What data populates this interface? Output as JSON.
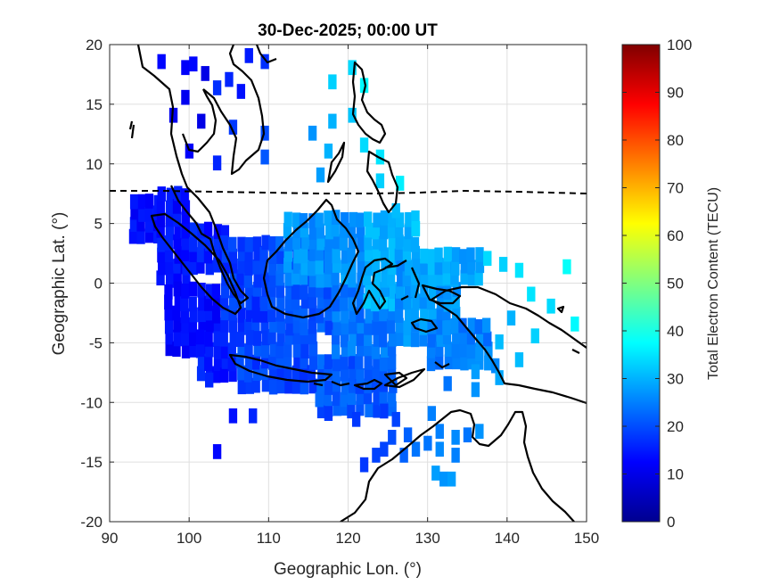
{
  "chart_data": {
    "type": "heatmap",
    "title": "30-Dec-2025; 00:00 UT",
    "xlabel": "Geographic Lon. (°)",
    "ylabel": "Geographic Lat. (°)",
    "xlim": [
      90,
      150
    ],
    "ylim": [
      -20,
      20
    ],
    "xticks": [
      90,
      100,
      110,
      120,
      130,
      140,
      150
    ],
    "yticks": [
      -20,
      -15,
      -10,
      -5,
      0,
      5,
      10,
      15,
      20
    ],
    "grid": true,
    "colorbar": {
      "label": "Total Electron Content (TECU)",
      "range": [
        0,
        100
      ],
      "ticks": [
        0,
        10,
        20,
        30,
        40,
        50,
        60,
        70,
        80,
        90,
        100
      ],
      "colormap": "jet"
    },
    "magnetic_equator_lat": 7.5,
    "cell_size_deg": [
      1.0,
      1.0
    ],
    "regions": [
      {
        "lon_min": 92.5,
        "lon_max": 96.5,
        "lat_min": 3.5,
        "lat_max": 7.5,
        "tec": 13
      },
      {
        "lon_min": 96,
        "lon_max": 100,
        "lat_min": 0,
        "lat_max": 7.5,
        "tec": 14
      },
      {
        "lon_min": 97,
        "lon_max": 104,
        "lat_min": -6,
        "lat_max": 0,
        "tec": 13
      },
      {
        "lon_min": 99,
        "lon_max": 105,
        "lat_min": 1,
        "lat_max": 5,
        "tec": 15
      },
      {
        "lon_min": 101,
        "lon_max": 106,
        "lat_min": -8,
        "lat_max": -4,
        "tec": 15
      },
      {
        "lon_min": 104,
        "lon_max": 110,
        "lat_min": -4,
        "lat_max": 4,
        "tec": 18
      },
      {
        "lon_min": 106,
        "lon_max": 116,
        "lat_min": -9,
        "lat_max": -4,
        "tec": 19
      },
      {
        "lon_min": 110,
        "lon_max": 118,
        "lat_min": -4,
        "lat_max": 4,
        "tec": 21
      },
      {
        "lon_min": 116,
        "lon_max": 126,
        "lat_min": -11,
        "lat_max": -6,
        "tec": 21
      },
      {
        "lon_min": 118,
        "lon_max": 126,
        "lat_min": -6,
        "lat_max": 0,
        "tec": 24
      },
      {
        "lon_min": 112,
        "lon_max": 122,
        "lat_min": 0,
        "lat_max": 6,
        "tec": 27
      },
      {
        "lon_min": 122,
        "lon_max": 129,
        "lat_min": -2,
        "lat_max": 6,
        "tec": 30
      },
      {
        "lon_min": 126,
        "lon_max": 134,
        "lat_min": -5,
        "lat_max": 2,
        "tec": 27
      },
      {
        "lon_min": 129,
        "lon_max": 137,
        "lat_min": 0,
        "lat_max": 3,
        "tec": 29
      },
      {
        "lon_min": 130,
        "lon_max": 138,
        "lat_min": -7,
        "lat_max": -3,
        "tec": 25
      }
    ],
    "scattered_cells": [
      {
        "lon": 96.5,
        "lat": 18.5,
        "tec": 13
      },
      {
        "lon": 99.5,
        "lat": 18.0,
        "tec": 12
      },
      {
        "lon": 100.5,
        "lat": 18.3,
        "tec": 13
      },
      {
        "lon": 102.0,
        "lat": 17.5,
        "tec": 10
      },
      {
        "lon": 103.5,
        "lat": 16.3,
        "tec": 17
      },
      {
        "lon": 105.0,
        "lat": 17.0,
        "tec": 16
      },
      {
        "lon": 106.5,
        "lat": 16.0,
        "tec": 14
      },
      {
        "lon": 107.5,
        "lat": 19.0,
        "tec": 15
      },
      {
        "lon": 109.5,
        "lat": 18.5,
        "tec": 17
      },
      {
        "lon": 99.5,
        "lat": 15.5,
        "tec": 11
      },
      {
        "lon": 98.0,
        "lat": 14.0,
        "tec": 11
      },
      {
        "lon": 101.5,
        "lat": 13.5,
        "tec": 10
      },
      {
        "lon": 105.5,
        "lat": 13.0,
        "tec": 18
      },
      {
        "lon": 109.5,
        "lat": 12.5,
        "tec": 20
      },
      {
        "lon": 100.0,
        "lat": 11.0,
        "tec": 12
      },
      {
        "lon": 109.5,
        "lat": 10.5,
        "tec": 21
      },
      {
        "lon": 118.0,
        "lat": 16.8,
        "tec": 33
      },
      {
        "lon": 120.5,
        "lat": 18.0,
        "tec": 34
      },
      {
        "lon": 122.0,
        "lat": 16.5,
        "tec": 37
      },
      {
        "lon": 118.0,
        "lat": 13.5,
        "tec": 30
      },
      {
        "lon": 120.5,
        "lat": 14.0,
        "tec": 32
      },
      {
        "lon": 115.5,
        "lat": 12.5,
        "tec": 27
      },
      {
        "lon": 117.5,
        "lat": 11.0,
        "tec": 30
      },
      {
        "lon": 122.0,
        "lat": 11.5,
        "tec": 34
      },
      {
        "lon": 124.0,
        "lat": 10.5,
        "tec": 35
      },
      {
        "lon": 116.5,
        "lat": 9.0,
        "tec": 28
      },
      {
        "lon": 124.0,
        "lat": 8.5,
        "tec": 33
      },
      {
        "lon": 126.5,
        "lat": 8.3,
        "tec": 36
      },
      {
        "lon": 103.5,
        "lat": 10.0,
        "tec": 16
      },
      {
        "lon": 126.0,
        "lat": 6.0,
        "tec": 31
      },
      {
        "lon": 128.5,
        "lat": 4.5,
        "tec": 33
      },
      {
        "lon": 137.5,
        "lat": 2.0,
        "tec": 34
      },
      {
        "lon": 139.5,
        "lat": 1.5,
        "tec": 33
      },
      {
        "lon": 141.5,
        "lat": 1.0,
        "tec": 35
      },
      {
        "lon": 147.5,
        "lat": 1.3,
        "tec": 38
      },
      {
        "lon": 143.0,
        "lat": -1.0,
        "tec": 35
      },
      {
        "lon": 145.5,
        "lat": -2.0,
        "tec": 34
      },
      {
        "lon": 140.5,
        "lat": -3.0,
        "tec": 30
      },
      {
        "lon": 143.5,
        "lat": -4.5,
        "tec": 33
      },
      {
        "lon": 148.5,
        "lat": -3.5,
        "tec": 37
      },
      {
        "lon": 139.0,
        "lat": -5.0,
        "tec": 31
      },
      {
        "lon": 141.5,
        "lat": -6.5,
        "tec": 31
      },
      {
        "lon": 136.5,
        "lat": -6.0,
        "tec": 27
      },
      {
        "lon": 132.5,
        "lat": -8.5,
        "tec": 24
      },
      {
        "lon": 136.0,
        "lat": -7.5,
        "tec": 28
      },
      {
        "lon": 138.5,
        "lat": -7.0,
        "tec": 26
      },
      {
        "lon": 139.0,
        "lat": -8.0,
        "tec": 29
      },
      {
        "lon": 136.0,
        "lat": -9.0,
        "tec": 27
      },
      {
        "lon": 102.5,
        "lat": -8.2,
        "tec": 16
      },
      {
        "lon": 105.5,
        "lat": -11.2,
        "tec": 14
      },
      {
        "lon": 108.0,
        "lat": -11.2,
        "tec": 16
      },
      {
        "lon": 103.5,
        "lat": -14.2,
        "tec": 13
      },
      {
        "lon": 117.5,
        "lat": -11.0,
        "tec": 18
      },
      {
        "lon": 121.0,
        "lat": -11.5,
        "tec": 18
      },
      {
        "lon": 124.5,
        "lat": -10.8,
        "tec": 18
      },
      {
        "lon": 126.0,
        "lat": -11.5,
        "tec": 19
      },
      {
        "lon": 125.5,
        "lat": -13.0,
        "tec": 20
      },
      {
        "lon": 124.5,
        "lat": -14.0,
        "tec": 19
      },
      {
        "lon": 123.5,
        "lat": -14.5,
        "tec": 19
      },
      {
        "lon": 122.0,
        "lat": -15.3,
        "tec": 18
      },
      {
        "lon": 127.5,
        "lat": -12.8,
        "tec": 22
      },
      {
        "lon": 128.5,
        "lat": -14.0,
        "tec": 24
      },
      {
        "lon": 127.0,
        "lat": -14.5,
        "tec": 22
      },
      {
        "lon": 130.5,
        "lat": -11.0,
        "tec": 25
      },
      {
        "lon": 131.5,
        "lat": -12.5,
        "tec": 25
      },
      {
        "lon": 130.0,
        "lat": -13.5,
        "tec": 24
      },
      {
        "lon": 131.5,
        "lat": -14.0,
        "tec": 26
      },
      {
        "lon": 133.5,
        "lat": -13.0,
        "tec": 26
      },
      {
        "lon": 135.0,
        "lat": -12.8,
        "tec": 24
      },
      {
        "lon": 136.5,
        "lat": -12.5,
        "tec": 27
      },
      {
        "lon": 133.5,
        "lat": -14.5,
        "tec": 25
      },
      {
        "lon": 131.0,
        "lat": -16.0,
        "tec": 28
      },
      {
        "lon": 132.0,
        "lat": -16.5,
        "tec": 27
      },
      {
        "lon": 133.0,
        "lat": -16.5,
        "tec": 28
      }
    ]
  }
}
